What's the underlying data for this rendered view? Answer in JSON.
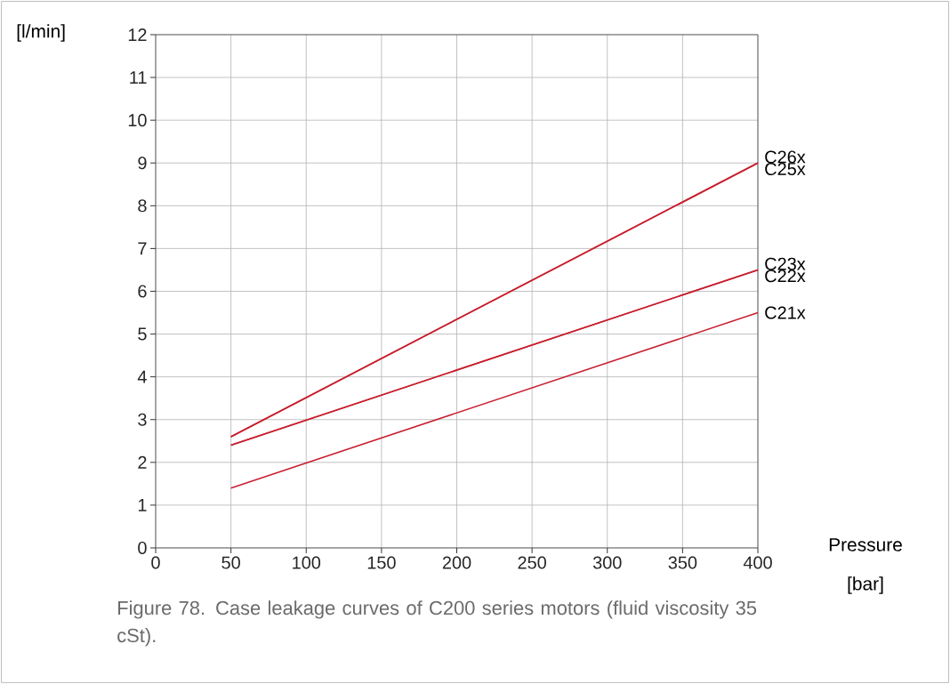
{
  "chart_data": {
    "type": "line",
    "xlabel": "Pressure [bar]",
    "ylabel": "[l/min]",
    "xlim": [
      0,
      400
    ],
    "ylim": [
      0,
      12
    ],
    "xticks": [
      0,
      50,
      100,
      150,
      200,
      250,
      300,
      350,
      400
    ],
    "yticks": [
      0,
      1,
      2,
      3,
      4,
      5,
      6,
      7,
      8,
      9,
      10,
      11,
      12
    ],
    "grid": true,
    "marker": "none",
    "line_style": "solid",
    "x": [
      50,
      400
    ],
    "series": [
      {
        "name": "C26x",
        "color": "#c8202f",
        "values": [
          2.6,
          9.0
        ]
      },
      {
        "name": "C25x",
        "color": "#c8202f",
        "values": [
          2.6,
          9.0
        ]
      },
      {
        "name": "C23x",
        "color": "#c8202f",
        "values": [
          2.4,
          6.5
        ]
      },
      {
        "name": "C22x",
        "color": "#c8202f",
        "values": [
          2.4,
          6.5
        ]
      },
      {
        "name": "C21x",
        "color": "#c8202f",
        "values": [
          1.4,
          5.5
        ]
      }
    ],
    "annotations": [
      "Figure 78. Case leakage curves of C200 series motors (fluid viscosity 35 cSt)."
    ]
  }
}
